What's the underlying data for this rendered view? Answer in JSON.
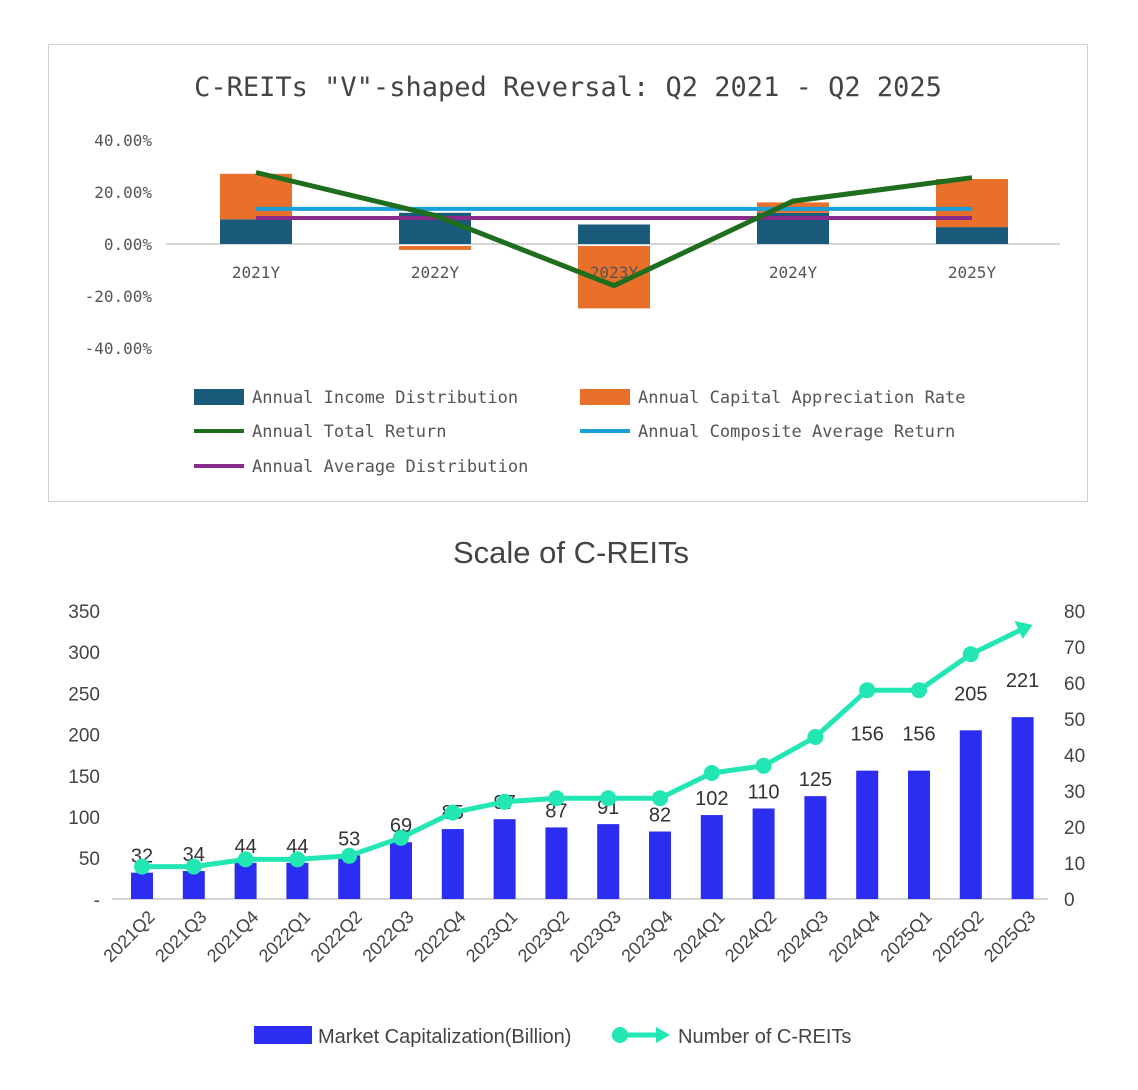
{
  "chart_data": [
    {
      "type": "bar",
      "title": "C-REITs \"V\"-shaped Reversal: Q2 2021 - Q2 2025",
      "categories": [
        "2021Y",
        "2022Y",
        "2023Y",
        "2024Y",
        "2025Y"
      ],
      "yticks": [
        "40.00%",
        "20.00%",
        "0.00%",
        "-20.00%",
        "-40.00%"
      ],
      "ylim": [
        -40,
        40
      ],
      "series": [
        {
          "name": "Annual Income Distribution",
          "kind": "stacked-bar",
          "color": "#1a5a7a",
          "values": [
            9.5,
            12,
            7.5,
            12,
            6.5
          ]
        },
        {
          "name": "Annual Capital Appreciation Rate",
          "kind": "stacked-bar",
          "color": "#e8702a",
          "values": [
            17.5,
            -1.5,
            -24,
            4,
            18.5
          ]
        },
        {
          "name": "Annual Total Return",
          "kind": "line",
          "color": "#1e6e1e",
          "values": [
            27.5,
            11,
            -16,
            16.5,
            25.5
          ]
        },
        {
          "name": "Annual Composite Average Return",
          "kind": "line",
          "color": "#1aa0d8",
          "values": [
            13.5,
            13.5,
            13.5,
            13.5,
            13.5
          ]
        },
        {
          "name": "Annual Average Distribution",
          "kind": "line",
          "color": "#8a2a8a",
          "values": [
            10,
            10,
            10,
            10,
            10
          ]
        }
      ],
      "legend": "bottom"
    },
    {
      "type": "bar",
      "title": "Scale of C-REITs",
      "categories": [
        "2021Q2",
        "2021Q3",
        "2021Q4",
        "2022Q1",
        "2022Q2",
        "2022Q3",
        "2022Q4",
        "2023Q1",
        "2023Q2",
        "2023Q3",
        "2023Q4",
        "2024Q1",
        "2024Q2",
        "2024Q3",
        "2024Q4",
        "2025Q1",
        "2025Q2",
        "2025Q3"
      ],
      "yticks_left": [
        "350",
        "300",
        "250",
        "200",
        "150",
        "100",
        "50",
        "-"
      ],
      "yticks_right": [
        "80",
        "70",
        "60",
        "50",
        "40",
        "30",
        "20",
        "10",
        "0"
      ],
      "ylim_left": [
        0,
        350
      ],
      "ylim_right": [
        0,
        80
      ],
      "series": [
        {
          "name": "Market Capitalization(Billion)",
          "kind": "bar",
          "color": "#2b2ef0",
          "values": [
            32,
            34,
            44,
            44,
            53,
            69,
            85,
            97,
            87,
            91,
            82,
            102,
            110,
            125,
            156,
            156,
            205,
            221
          ]
        },
        {
          "name": "Number of  C-REITs",
          "kind": "line",
          "axis": "right",
          "color": "#22e6b4",
          "values": [
            9,
            9,
            11,
            11,
            12,
            17,
            24,
            27,
            28,
            28,
            28,
            35,
            37,
            45,
            58,
            58,
            68,
            75
          ]
        }
      ],
      "legend": "bottom"
    }
  ]
}
